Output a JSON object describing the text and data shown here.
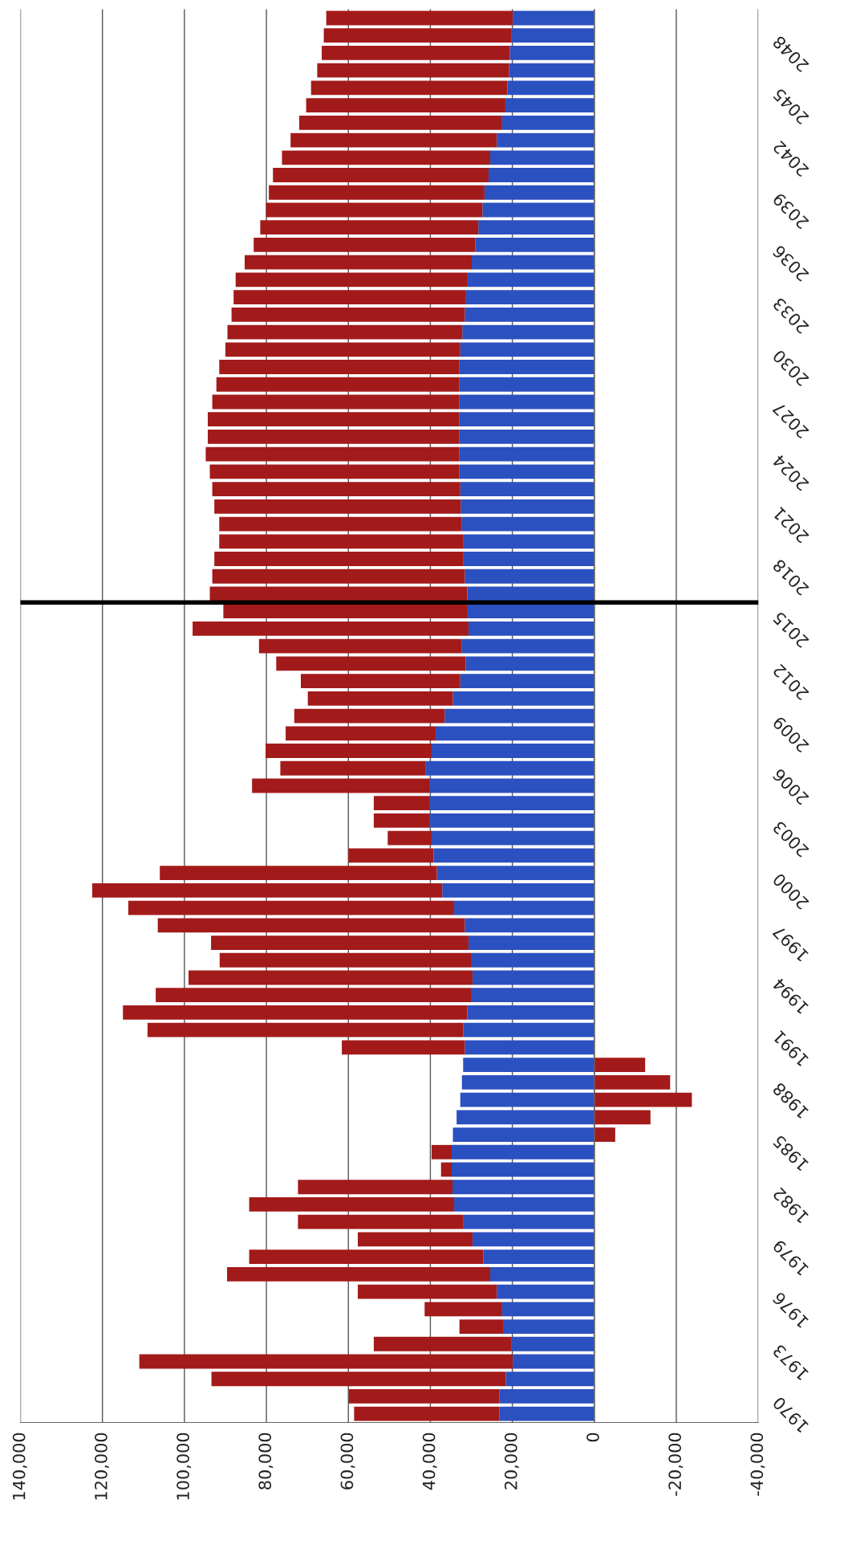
{
  "chart_data": {
    "type": "bar",
    "orientation": "horizontal",
    "stacked": true,
    "grid": "x",
    "x": [
      1970,
      1971,
      1972,
      1973,
      1974,
      1975,
      1976,
      1977,
      1978,
      1979,
      1980,
      1981,
      1982,
      1983,
      1984,
      1985,
      1986,
      1987,
      1988,
      1989,
      1990,
      1991,
      1992,
      1993,
      1994,
      1995,
      1996,
      1997,
      1998,
      1999,
      2000,
      2001,
      2002,
      2003,
      2004,
      2005,
      2006,
      2007,
      2008,
      2009,
      2010,
      2011,
      2012,
      2013,
      2014,
      2015,
      2016,
      2017,
      2018,
      2019,
      2020,
      2021,
      2022,
      2023,
      2024,
      2025,
      2026,
      2027,
      2028,
      2029,
      2030,
      2031,
      2032,
      2033,
      2034,
      2035,
      2036,
      2037,
      2038,
      2039,
      2040,
      2041,
      2042,
      2043,
      2044,
      2045,
      2046,
      2047,
      2048,
      2049,
      2050
    ],
    "series": [
      {
        "color": "#2b50c0",
        "values": [
          23200,
          23200,
          21600,
          19900,
          20300,
          22100,
          22500,
          23800,
          25400,
          27100,
          29700,
          31900,
          34200,
          34600,
          34800,
          34800,
          34500,
          33600,
          32700,
          32300,
          32000,
          31600,
          32000,
          31000,
          30100,
          29700,
          30100,
          30700,
          31600,
          34200,
          37100,
          38400,
          39200,
          39700,
          40100,
          40100,
          40100,
          41100,
          39700,
          38700,
          36500,
          34500,
          32700,
          31400,
          32300,
          30700,
          30900,
          31000,
          31600,
          31900,
          31900,
          32300,
          32600,
          32700,
          32900,
          32900,
          32900,
          32900,
          32900,
          32900,
          32900,
          32700,
          32200,
          31600,
          31300,
          30900,
          29900,
          29000,
          28300,
          27300,
          26800,
          25800,
          25400,
          23800,
          22500,
          21700,
          21200,
          20800,
          20600,
          20300,
          19900
        ]
      },
      {
        "color": "#a31a1a",
        "values": [
          35400,
          36700,
          71800,
          91100,
          33500,
          10800,
          18900,
          33900,
          64200,
          57100,
          28000,
          40400,
          50000,
          37700,
          2600,
          4900,
          -5100,
          -13700,
          -23800,
          -18500,
          -12400,
          30000,
          77000,
          84000,
          76900,
          69300,
          61300,
          62800,
          74900,
          79500,
          85400,
          67600,
          20800,
          10700,
          13700,
          13700,
          43400,
          35500,
          40500,
          36600,
          36700,
          35400,
          38900,
          46200,
          49500,
          67300,
          59600,
          62800,
          61600,
          60800,
          59600,
          59200,
          60100,
          60500,
          60900,
          61900,
          61400,
          61400,
          60300,
          59300,
          58600,
          57300,
          57300,
          56900,
          56700,
          56600,
          55400,
          54100,
          53200,
          52800,
          52600,
          52600,
          50800,
          50300,
          49500,
          48600,
          47900,
          46800,
          45900,
          45700,
          45500
        ]
      }
    ],
    "xlim": [
      140000,
      -40000
    ],
    "xticks": [
      {
        "value": 140000,
        "label": "140,000"
      },
      {
        "value": 120000,
        "label": "120,000"
      },
      {
        "value": 100000,
        "label": "100,000"
      },
      {
        "value": 80000,
        "label": "80,000"
      },
      {
        "value": 60000,
        "label": "60,000"
      },
      {
        "value": 40000,
        "label": "40,000"
      },
      {
        "value": 20000,
        "label": "20,000"
      },
      0,
      {
        "value": -20000,
        "label": "-20,000"
      },
      {
        "value": -40000,
        "label": "-40,000"
      }
    ],
    "ylim": [
      1969.5,
      2050.5
    ],
    "yticks": [
      1970,
      1973,
      1976,
      1979,
      1982,
      1985,
      1988,
      1991,
      1994,
      1997,
      2000,
      2003,
      2006,
      2009,
      2012,
      2015,
      2018,
      2021,
      2024,
      2027,
      2030,
      2033,
      2036,
      2039,
      2042,
      2045,
      2048
    ],
    "ref_lines": [
      {
        "axis": "y",
        "value": 2016.5,
        "color": "#000000"
      }
    ]
  }
}
